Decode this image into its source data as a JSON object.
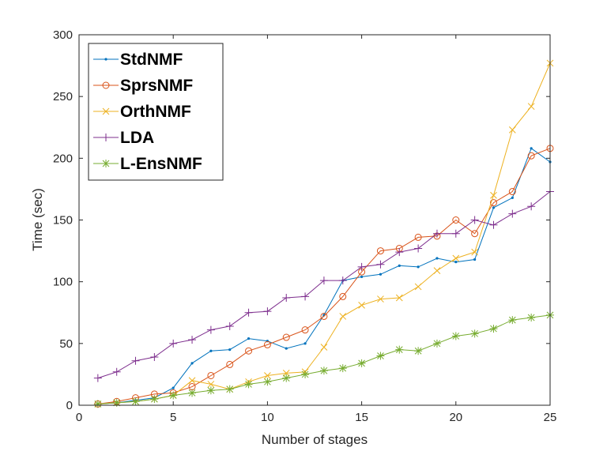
{
  "chart_data": {
    "type": "line",
    "xlabel": "Number of stages",
    "ylabel": "Time (sec)",
    "xlim": [
      0,
      25
    ],
    "ylim": [
      0,
      300
    ],
    "xticks": [
      0,
      5,
      10,
      15,
      20,
      25
    ],
    "yticks": [
      0,
      50,
      100,
      150,
      200,
      250,
      300
    ],
    "grid": false,
    "legend_position": "top-left",
    "x": [
      1,
      2,
      3,
      4,
      5,
      6,
      7,
      8,
      9,
      10,
      11,
      12,
      13,
      14,
      15,
      16,
      17,
      18,
      19,
      20,
      21,
      22,
      23,
      24,
      25
    ],
    "series": [
      {
        "name": "StdNMF",
        "color": "#0072BD",
        "marker": "dot",
        "values": [
          1,
          2,
          4,
          6,
          14,
          34,
          44,
          45,
          54,
          52,
          46,
          50,
          73,
          101,
          104,
          106,
          113,
          112,
          119,
          116,
          118,
          160,
          168,
          208,
          197
        ]
      },
      {
        "name": "SprsNMF",
        "color": "#D95319",
        "marker": "circle",
        "values": [
          1,
          3,
          6,
          9,
          10,
          15,
          24,
          33,
          44,
          49,
          55,
          61,
          72,
          88,
          108,
          125,
          127,
          136,
          137,
          150,
          139,
          164,
          173,
          202,
          208
        ]
      },
      {
        "name": "OrthNMF",
        "color": "#EDB120",
        "marker": "x",
        "values": [
          1,
          2,
          3,
          5,
          8,
          20,
          17,
          13,
          19,
          24,
          26,
          27,
          47,
          72,
          81,
          86,
          87,
          96,
          109,
          119,
          124,
          170,
          223,
          242,
          277
        ]
      },
      {
        "name": "LDA",
        "color": "#7E2F8E",
        "marker": "plus",
        "values": [
          22,
          27,
          36,
          39,
          50,
          53,
          61,
          64,
          75,
          76,
          87,
          88,
          101,
          101,
          112,
          114,
          124,
          127,
          139,
          139,
          150,
          146,
          155,
          161,
          173
        ]
      },
      {
        "name": "L-EnsNMF",
        "color": "#77AC30",
        "marker": "asterisk",
        "values": [
          1,
          2,
          3,
          5,
          8,
          10,
          12,
          13,
          17,
          19,
          22,
          25,
          28,
          30,
          34,
          40,
          45,
          44,
          50,
          56,
          58,
          62,
          69,
          71,
          73
        ]
      }
    ]
  }
}
